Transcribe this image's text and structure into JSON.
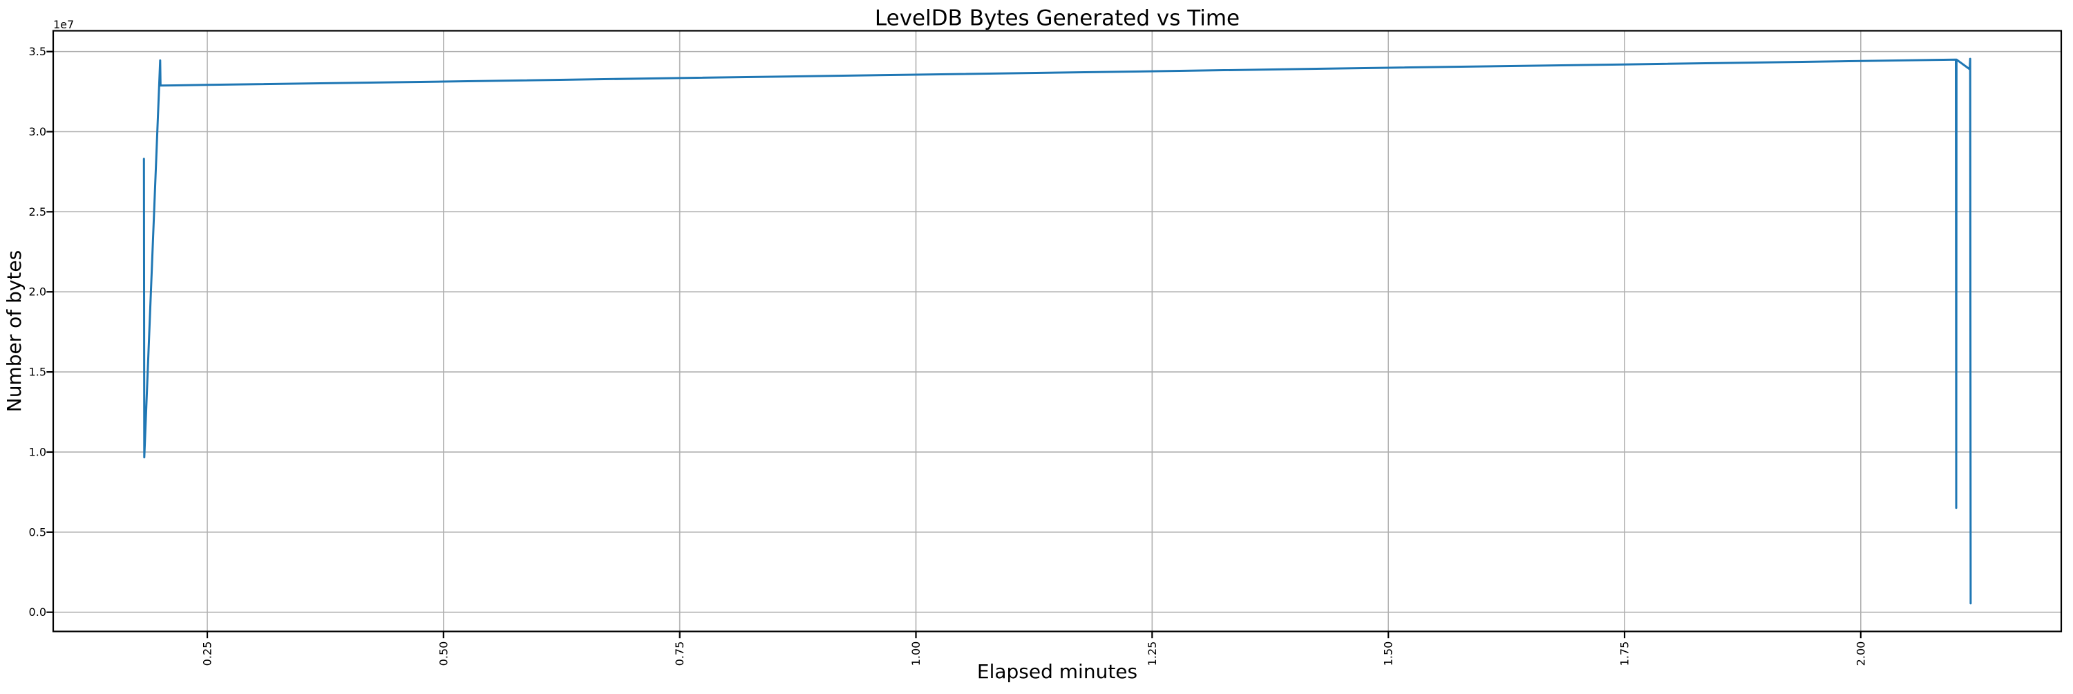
{
  "figure": {
    "background": "#ffffff"
  },
  "chart_data": {
    "type": "line",
    "title": "LevelDB Bytes Generated vs Time",
    "xlabel": "Elapsed minutes",
    "ylabel": "Number of bytes",
    "y_axis_offset_text": "1e7",
    "grid": true,
    "legend": "none",
    "line_color": "#1f77b4",
    "grid_color": "#b0b0b0",
    "spine_color": "#000000",
    "xlim": [
      0.0869,
      2.2122
    ],
    "ylim": [
      -1200000,
      36300000
    ],
    "x_ticks": {
      "values": [
        0.25,
        0.5,
        0.75,
        1.0,
        1.25,
        1.5,
        1.75,
        2.0
      ],
      "labels": [
        "0.25",
        "0.50",
        "0.75",
        "1.00",
        "1.25",
        "1.50",
        "1.75",
        "2.00"
      ],
      "rotation_deg": 90
    },
    "y_ticks": {
      "values": [
        0,
        5000000,
        10000000,
        15000000,
        20000000,
        25000000,
        30000000,
        35000000
      ],
      "labels": [
        "0.0",
        "0.5",
        "1.0",
        "1.5",
        "2.0",
        "2.5",
        "3.0",
        "3.5"
      ]
    },
    "series": [
      {
        "name": "LevelDB bytes generated",
        "points": [
          [
            0.1829,
            28310000
          ],
          [
            0.1833,
            9670000
          ],
          [
            0.2001,
            34450000
          ],
          [
            0.2005,
            32880000
          ],
          [
            0.25,
            32920000
          ],
          [
            0.5,
            33130000
          ],
          [
            0.75,
            33350000
          ],
          [
            1.0,
            33560000
          ],
          [
            1.25,
            33770000
          ],
          [
            1.5,
            33990000
          ],
          [
            1.75,
            34200000
          ],
          [
            2.0,
            34410000
          ],
          [
            2.1007,
            34500000
          ],
          [
            2.101,
            6510000
          ],
          [
            2.1013,
            34500000
          ],
          [
            2.1153,
            33900000
          ],
          [
            2.1158,
            34550000
          ],
          [
            2.1163,
            550000
          ]
        ]
      }
    ]
  }
}
